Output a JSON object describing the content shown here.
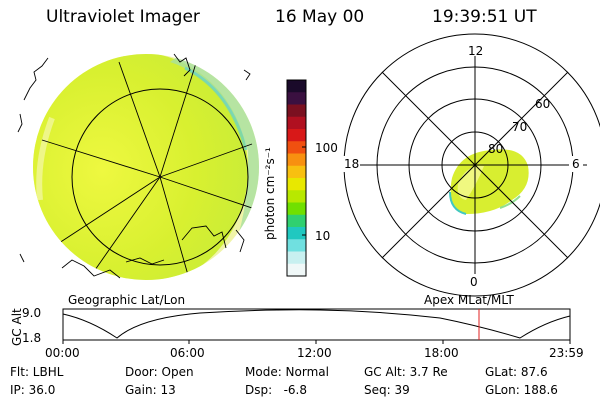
{
  "header": {
    "instrument": "Ultraviolet Imager",
    "date": "16 May 00",
    "time": "19:39:51 UT"
  },
  "colorbar": {
    "unit_label": "photon cm⁻²s⁻¹",
    "tick_100": "100",
    "tick_10": "10",
    "colors_top_to_bottom": [
      "#1a0a2a",
      "#3a1040",
      "#7a1020",
      "#b01020",
      "#d81818",
      "#f05010",
      "#f89010",
      "#f8c010",
      "#e8e800",
      "#b8e800",
      "#70e000",
      "#30d070",
      "#20c8c0",
      "#70e0e0",
      "#c8f0f0",
      "#f0f8f8"
    ]
  },
  "globe_panel": {
    "name": "Geographic Lat/Lon"
  },
  "polar_panel": {
    "name": "Apex MLat/MLT",
    "mlt_labels": {
      "top": "12",
      "left": "18",
      "right": "6",
      "bottom": "0"
    },
    "lat_labels": [
      "60",
      "70",
      "80"
    ]
  },
  "altitude_plot": {
    "axis_label": "GC Alt",
    "max_label": "9.0",
    "min_label": "1.8",
    "marker_color": "#e02020",
    "time_ticks": [
      "00:00",
      "06:00",
      "12:00",
      "18:00",
      "23:59"
    ]
  },
  "status": {
    "flt": "Flt: LBHL",
    "ip": "IP: 36.0",
    "door": "Door: Open",
    "gain": "Gain: 13",
    "mode": "Mode: Normal",
    "dsp": "Dsp:   -6.8",
    "gc_alt": "GC Alt: 3.7 Re",
    "seq": "Seq: 39",
    "glat": "GLat: 87.6",
    "glon": "GLon: 188.6"
  }
}
